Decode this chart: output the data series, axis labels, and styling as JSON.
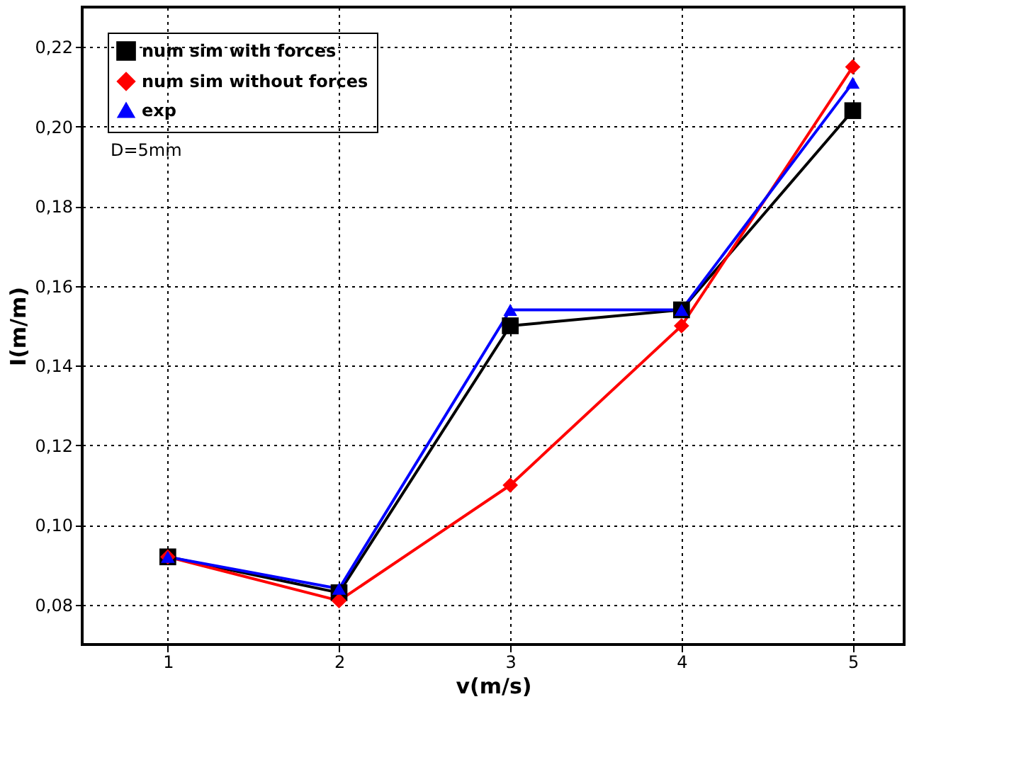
{
  "chart_data": {
    "type": "line",
    "xlabel": "v(m/s)",
    "ylabel": "I(m/m)",
    "x": [
      1,
      2,
      3,
      4,
      5
    ],
    "series": [
      {
        "name": "num sim with forces",
        "color": "#000000",
        "marker": "square",
        "values": [
          0.092,
          0.083,
          0.15,
          0.154,
          0.204
        ]
      },
      {
        "name": "num sim without forces",
        "color": "#ff0000",
        "marker": "diamond",
        "values": [
          0.092,
          0.081,
          0.11,
          0.15,
          0.215
        ]
      },
      {
        "name": "exp",
        "color": "#0000ff",
        "marker": "triangle",
        "values": [
          0.092,
          0.084,
          0.154,
          0.154,
          0.211
        ]
      }
    ],
    "xlim": [
      0.5,
      5.3
    ],
    "xticks": [
      1,
      2,
      3,
      4,
      5
    ],
    "ylim": [
      0.07,
      0.23
    ],
    "yticks": [
      {
        "value": 0.08,
        "label": "0,08"
      },
      {
        "value": 0.1,
        "label": "0,10"
      },
      {
        "value": 0.12,
        "label": "0,12"
      },
      {
        "value": 0.14,
        "label": "0,14"
      },
      {
        "value": 0.16,
        "label": "0,16"
      },
      {
        "value": 0.18,
        "label": "0,18"
      },
      {
        "value": 0.2,
        "label": "0,20"
      },
      {
        "value": 0.22,
        "label": "0,22"
      }
    ],
    "annotations": [
      "D=5mm"
    ],
    "grid": true,
    "legend": "top left",
    "line_style": "solid"
  }
}
